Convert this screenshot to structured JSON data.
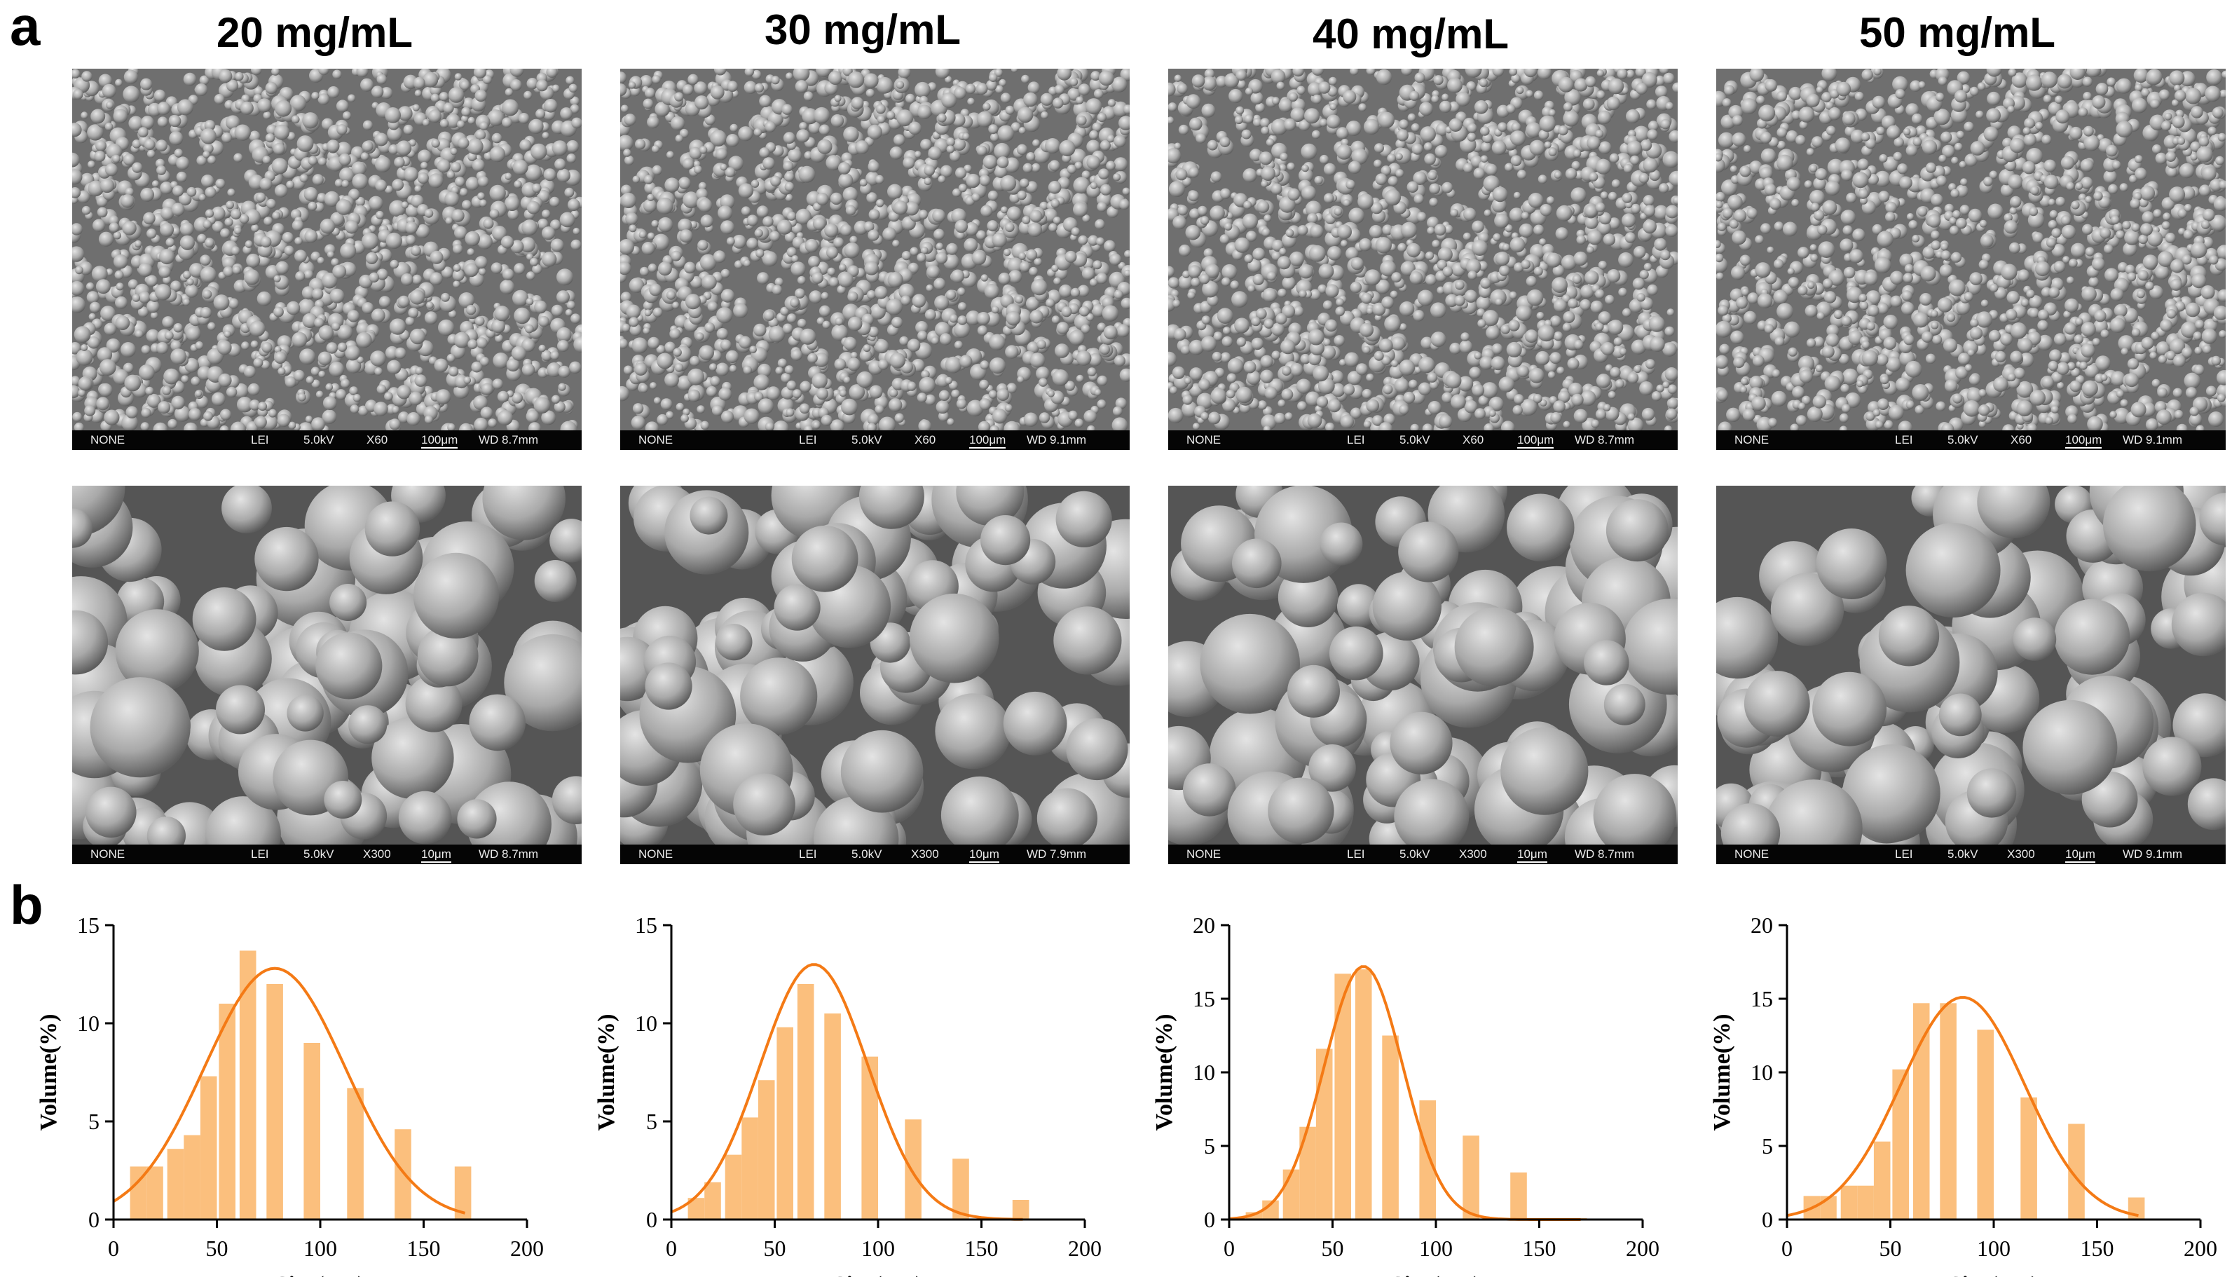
{
  "panel_labels": {
    "a": "a",
    "b": "b"
  },
  "colors": {
    "bar": "#fbbf7d",
    "fit_line": "#f47a15",
    "axis": "#000000"
  },
  "columns": [
    {
      "title": "20 mg/mL",
      "sem_low": {
        "detector": "NONE",
        "mode": "LEI",
        "voltage": "5.0kV",
        "mag": "X60",
        "scale": "100μm",
        "wd": "WD 8.7mm"
      },
      "sem_high": {
        "detector": "NONE",
        "mode": "LEI",
        "voltage": "5.0kV",
        "mag": "X300",
        "scale": "10μm",
        "wd": "WD 8.7mm"
      }
    },
    {
      "title": "30 mg/mL",
      "sem_low": {
        "detector": "NONE",
        "mode": "LEI",
        "voltage": "5.0kV",
        "mag": "X60",
        "scale": "100μm",
        "wd": "WD 9.1mm"
      },
      "sem_high": {
        "detector": "NONE",
        "mode": "LEI",
        "voltage": "5.0kV",
        "mag": "X300",
        "scale": "10μm",
        "wd": "WD 7.9mm"
      }
    },
    {
      "title": "40 mg/mL",
      "sem_low": {
        "detector": "NONE",
        "mode": "LEI",
        "voltage": "5.0kV",
        "mag": "X60",
        "scale": "100μm",
        "wd": "WD 8.7mm"
      },
      "sem_high": {
        "detector": "NONE",
        "mode": "LEI",
        "voltage": "5.0kV",
        "mag": "X300",
        "scale": "10μm",
        "wd": "WD 8.7mm"
      }
    },
    {
      "title": "50 mg/mL",
      "sem_low": {
        "detector": "NONE",
        "mode": "LEI",
        "voltage": "5.0kV",
        "mag": "X60",
        "scale": "100μm",
        "wd": "WD 9.1mm"
      },
      "sem_high": {
        "detector": "NONE",
        "mode": "LEI",
        "voltage": "5.0kV",
        "mag": "X300",
        "scale": "10μm",
        "wd": "WD 9.1mm"
      }
    }
  ],
  "chart_data": [
    {
      "type": "bar",
      "xlabel": "Size(μm)",
      "ylabel": "Volume(%)",
      "xlim": [
        0,
        200
      ],
      "ylim": [
        0,
        15
      ],
      "xticks": [
        0,
        50,
        100,
        150,
        200
      ],
      "yticks": [
        0,
        5,
        10,
        15
      ],
      "bin_centers": [
        12,
        20,
        30,
        38,
        46,
        55,
        65,
        78,
        96,
        117,
        140,
        169
      ],
      "values": [
        2.7,
        2.7,
        3.6,
        4.3,
        7.3,
        11.0,
        13.7,
        12.0,
        9.0,
        6.7,
        4.6,
        2.7
      ],
      "fit": {
        "type": "gaussian",
        "amplitude": 12.8,
        "mean": 78,
        "sd": 34
      }
    },
    {
      "type": "bar",
      "xlabel": "Size(μm)",
      "ylabel": "Volume(%)",
      "xlim": [
        0,
        200
      ],
      "ylim": [
        0,
        15
      ],
      "xticks": [
        0,
        50,
        100,
        150,
        200
      ],
      "yticks": [
        0,
        5,
        10,
        15
      ],
      "bin_centers": [
        12,
        20,
        30,
        38,
        46,
        55,
        65,
        78,
        96,
        117,
        140,
        169
      ],
      "values": [
        1.1,
        1.9,
        3.3,
        5.2,
        7.1,
        9.8,
        12.0,
        10.5,
        8.3,
        5.1,
        3.1,
        1.0
      ],
      "fit": {
        "type": "gaussian",
        "amplitude": 13.0,
        "mean": 69,
        "sd": 26
      }
    },
    {
      "type": "bar",
      "xlabel": "Size(μm)",
      "ylabel": "Volume(%)",
      "xlim": [
        0,
        200
      ],
      "ylim": [
        0,
        20
      ],
      "xticks": [
        0,
        50,
        100,
        150,
        200
      ],
      "yticks": [
        0,
        5,
        10,
        15,
        20
      ],
      "bin_centers": [
        12,
        20,
        30,
        38,
        46,
        55,
        65,
        78,
        96,
        117,
        140,
        169
      ],
      "values": [
        0.5,
        1.3,
        3.4,
        6.3,
        11.6,
        16.7,
        17.0,
        12.5,
        8.1,
        5.7,
        3.2,
        0.1
      ],
      "fit": {
        "type": "gaussian",
        "amplitude": 17.2,
        "mean": 65,
        "sd": 19
      }
    },
    {
      "type": "bar",
      "xlabel": "Size(μm)",
      "ylabel": "Volume(%)",
      "xlim": [
        0,
        200
      ],
      "ylim": [
        0,
        20
      ],
      "xticks": [
        0,
        50,
        100,
        150,
        200
      ],
      "yticks": [
        0,
        5,
        10,
        15,
        20
      ],
      "bin_centers": [
        12,
        20,
        30,
        38,
        46,
        55,
        65,
        78,
        96,
        117,
        140,
        169
      ],
      "values": [
        1.6,
        1.6,
        2.3,
        2.3,
        5.3,
        10.2,
        14.7,
        14.7,
        12.9,
        8.3,
        6.5,
        1.5
      ],
      "fit": {
        "type": "gaussian",
        "amplitude": 15.1,
        "mean": 85,
        "sd": 30
      }
    }
  ]
}
